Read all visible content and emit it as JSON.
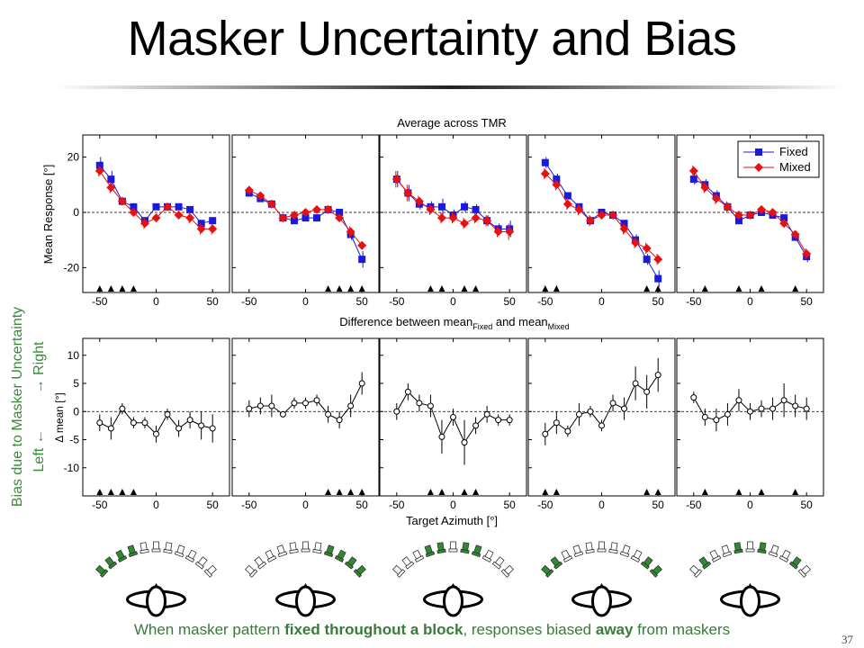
{
  "title": "Masker Uncertainty and Bias",
  "page_number": "37",
  "caption": {
    "pre": "When masker pattern ",
    "bold1": "fixed throughout a block",
    "mid": ", responses biased ",
    "bold2": "away",
    "post": " from maskers"
  },
  "side_label": {
    "line1": "Bias due to Masker Uncertainty",
    "line2_left": "Left ",
    "line2_arrow_left": "←",
    "line2_arrow_right": "→",
    "line2_right": " Right"
  },
  "colors": {
    "fixed": "#1a1adc",
    "mixed": "#e81010",
    "delta": "#000000",
    "green_text": "#3a8a3a",
    "speaker_on": "#2e8b2e",
    "speaker_off": "#ffffff"
  },
  "top_title": "Average across TMR",
  "top_ylabel": "Mean Response [°]",
  "bottom_ylabel": "Δ mean [°]",
  "mid_label": {
    "base": "Difference between mean",
    "sub1": "Fixed",
    "and": " and mean",
    "sub2": "Mixed"
  },
  "bottom_xlabel": "Target Azimuth [°]",
  "legend": {
    "fixed": "Fixed",
    "mixed": "Mixed"
  },
  "chart_data": [
    {
      "type": "line",
      "title": "Average across TMR",
      "ylabel": "Mean Response [°]",
      "xlim": [
        -65,
        65
      ],
      "ylim": [
        -29,
        28
      ],
      "xticks": [
        -50,
        0,
        50
      ],
      "xticklabels": [
        "-50",
        "0",
        "50"
      ],
      "yticks": [
        -20,
        0,
        20
      ],
      "yticklabels": [
        "-20",
        "0",
        "20"
      ],
      "x": [
        -50,
        -40,
        -30,
        -20,
        -10,
        0,
        10,
        20,
        30,
        40,
        50
      ],
      "legend_position": "top-right",
      "panels": [
        {
          "maskers": [
            -50,
            -40,
            -30,
            -20
          ],
          "series": [
            {
              "name": "Fixed",
              "values": [
                17,
                12,
                4,
                2,
                -3,
                2,
                2,
                2,
                1,
                -4,
                -3
              ],
              "err": [
                3,
                3,
                1,
                1,
                1,
                1,
                1,
                1,
                1,
                1,
                1
              ]
            },
            {
              "name": "Mixed",
              "values": [
                15,
                9,
                4,
                0,
                -4,
                -2,
                2,
                -1,
                -2,
                -6,
                -6
              ],
              "err": [
                2,
                2,
                1,
                1,
                2,
                1,
                1,
                1,
                2,
                2,
                2
              ]
            }
          ]
        },
        {
          "maskers": [
            20,
            30,
            40,
            50
          ],
          "series": [
            {
              "name": "Fixed",
              "values": [
                7,
                5,
                3,
                -2,
                -3,
                -2,
                -2,
                1,
                0,
                -8,
                -17
              ],
              "err": [
                1,
                1,
                1,
                1,
                1,
                1,
                1,
                1,
                1,
                2,
                3
              ]
            },
            {
              "name": "Mixed",
              "values": [
                8,
                6,
                3,
                -2,
                -1,
                0,
                1,
                1,
                -2,
                -7,
                -12
              ],
              "err": [
                1,
                1,
                1,
                1,
                1,
                1,
                1,
                1,
                1,
                2,
                1
              ]
            }
          ]
        },
        {
          "maskers": [
            -20,
            -10,
            10,
            20
          ],
          "series": [
            {
              "name": "Fixed",
              "values": [
                12,
                7,
                3,
                2,
                2,
                -1,
                2,
                1,
                -3,
                -6,
                -6
              ],
              "err": [
                3,
                3,
                2,
                2,
                3,
                2,
                2,
                2,
                2,
                2,
                3
              ]
            },
            {
              "name": "Mixed",
              "values": [
                12,
                7,
                4,
                1,
                -2,
                -2,
                -4,
                -2,
                -3,
                -7,
                -7
              ],
              "err": [
                3,
                3,
                2,
                2,
                2,
                2,
                2,
                2,
                2,
                2,
                3
              ]
            }
          ]
        },
        {
          "maskers": [
            -50,
            -40,
            40,
            50
          ],
          "series": [
            {
              "name": "Fixed",
              "values": [
                18,
                12,
                6,
                2,
                -3,
                0,
                -1,
                -4,
                -10,
                -17,
                -24
              ],
              "err": [
                2,
                2,
                1,
                1,
                1,
                1,
                1,
                1,
                2,
                2,
                3
              ]
            },
            {
              "name": "Mixed",
              "values": [
                14,
                10,
                3,
                1,
                -3,
                -1,
                -1,
                -6,
                -11,
                -13,
                -17
              ],
              "err": [
                2,
                2,
                2,
                2,
                2,
                1,
                1,
                2,
                2,
                2,
                2
              ]
            }
          ]
        },
        {
          "maskers": [
            -40,
            -10,
            10,
            40
          ],
          "series": [
            {
              "name": "Fixed",
              "values": [
                12,
                10,
                6,
                2,
                -3,
                -1,
                0,
                -1,
                -2,
                -9,
                -16
              ],
              "err": [
                2,
                2,
                2,
                1,
                1,
                1,
                1,
                1,
                1,
                1,
                2
              ]
            },
            {
              "name": "Mixed",
              "values": [
                15,
                9,
                5,
                2,
                -1,
                -1,
                1,
                0,
                -4,
                -8,
                -15
              ],
              "err": [
                2,
                2,
                2,
                2,
                1,
                1,
                1,
                1,
                1,
                1,
                2
              ]
            }
          ]
        }
      ]
    },
    {
      "type": "line",
      "title": "Difference between meanFixed and meanMixed",
      "xlabel": "Target Azimuth [°]",
      "ylabel": "Δ mean [°]",
      "xlim": [
        -65,
        65
      ],
      "ylim": [
        -15,
        13
      ],
      "xticks": [
        -50,
        0,
        50
      ],
      "xticklabels": [
        "-50",
        "0",
        "50"
      ],
      "yticks": [
        -10,
        -5,
        0,
        5,
        10
      ],
      "yticklabels": [
        "-10",
        "-5",
        "0",
        "5",
        "10"
      ],
      "x": [
        -50,
        -40,
        -30,
        -20,
        -10,
        0,
        10,
        20,
        30,
        40,
        50
      ],
      "panels": [
        {
          "maskers": [
            -50,
            -40,
            -30,
            -20
          ],
          "values": [
            -2,
            -3,
            0.5,
            -2,
            -2,
            -4,
            -0.5,
            -3,
            -1.5,
            -2.5,
            -3
          ],
          "err": [
            1.5,
            2,
            1,
            1,
            1,
            1.5,
            1,
            1.5,
            1.5,
            2.5,
            2.5
          ]
        },
        {
          "maskers": [
            20,
            30,
            40,
            50
          ],
          "values": [
            0.5,
            1,
            1,
            -0.5,
            1.5,
            1.5,
            2,
            -0.5,
            -1.5,
            1,
            5
          ],
          "err": [
            1.5,
            1.5,
            2,
            0.5,
            1,
            1,
            1,
            1.5,
            1.5,
            2,
            2
          ]
        },
        {
          "maskers": [
            -20,
            -10,
            10,
            20
          ],
          "values": [
            0,
            3.5,
            1.5,
            1,
            -4.5,
            -1,
            -5.5,
            -2.5,
            -0.5,
            -1.5,
            -1.5
          ],
          "err": [
            1.5,
            1.5,
            1.5,
            2,
            3,
            1.5,
            4,
            1.5,
            1.5,
            1,
            1
          ]
        },
        {
          "maskers": [
            -50,
            -40,
            40,
            50
          ],
          "values": [
            -4,
            -2,
            -3.5,
            -0.5,
            0,
            -2.5,
            1.5,
            0.5,
            5,
            3.5,
            6.5
          ],
          "err": [
            2,
            2,
            1,
            2,
            1,
            1,
            1.5,
            2,
            3,
            3,
            3
          ]
        },
        {
          "maskers": [
            -40,
            -10,
            10,
            40
          ],
          "values": [
            2.5,
            -1,
            -1.5,
            -0.5,
            2,
            0,
            0.5,
            0.5,
            2,
            1,
            0.5
          ],
          "err": [
            1,
            1.5,
            2,
            2,
            2,
            1.5,
            1.5,
            2,
            3,
            2,
            2
          ]
        }
      ]
    }
  ]
}
